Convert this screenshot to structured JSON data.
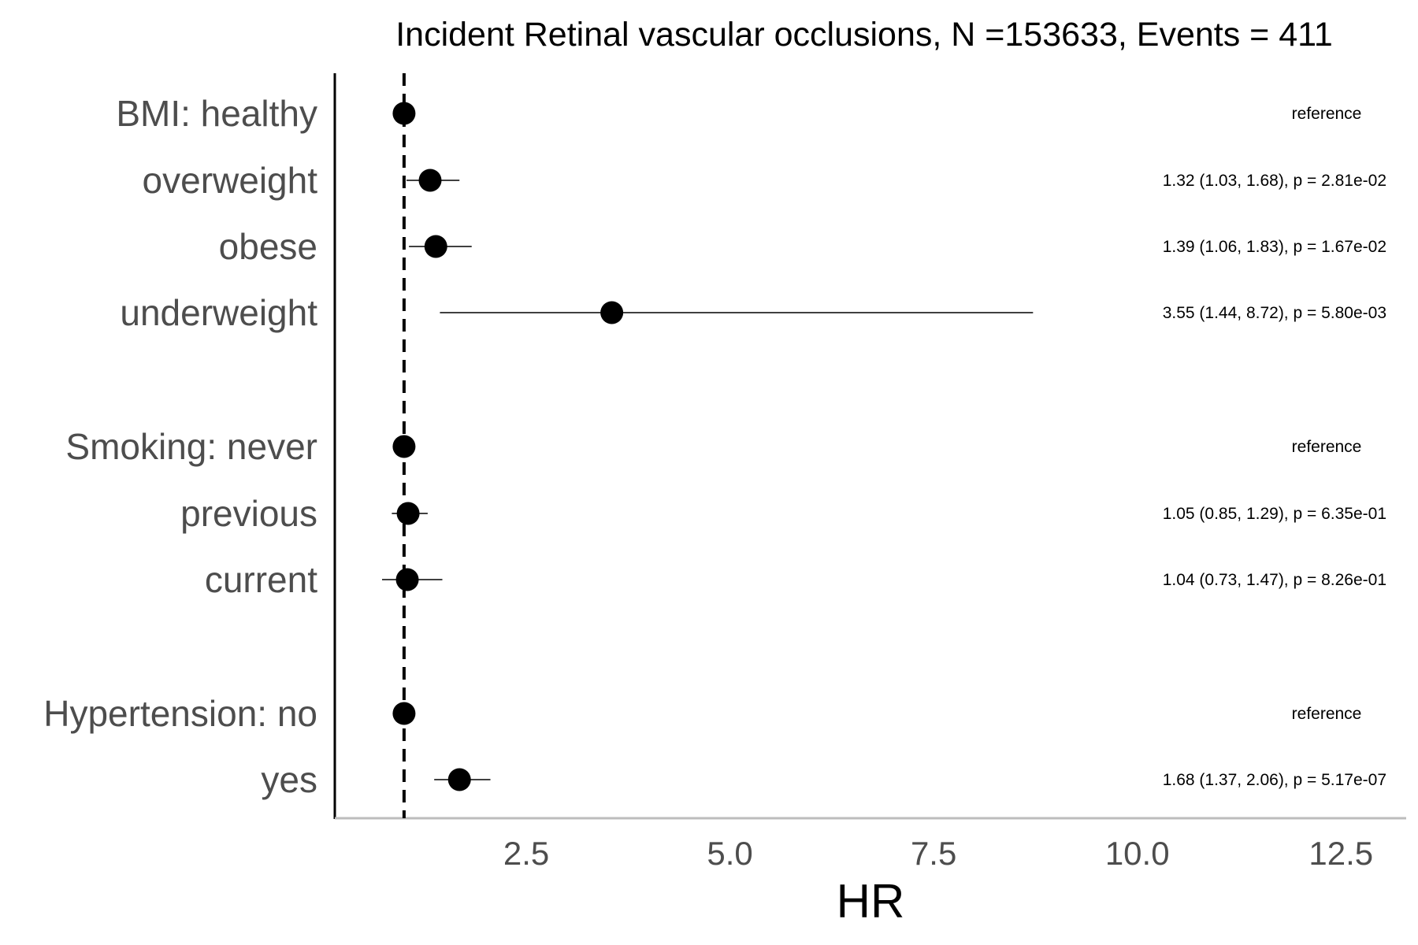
{
  "chart_data": {
    "type": "forest",
    "title": "Incident Retinal vascular occlusions, N =153633, Events = 411",
    "xlabel": "HR",
    "ylabel": "",
    "xlim": [
      0.15,
      13.3
    ],
    "xticks": [
      2.5,
      5.0,
      7.5,
      10.0,
      12.5
    ],
    "xtick_labels": [
      "2.5",
      "5.0",
      "7.5",
      "10.0",
      "12.5"
    ],
    "reference_line": 1.0,
    "grid": false,
    "rows": [
      {
        "label": "BMI: healthy",
        "hr": 1.0,
        "lower": null,
        "upper": null,
        "annotation": "reference"
      },
      {
        "label": "overweight",
        "hr": 1.32,
        "lower": 1.03,
        "upper": 1.68,
        "annotation": "1.32 (1.03, 1.68), p = 2.81e-02"
      },
      {
        "label": "obese",
        "hr": 1.39,
        "lower": 1.06,
        "upper": 1.83,
        "annotation": "1.39 (1.06, 1.83), p = 1.67e-02"
      },
      {
        "label": "underweight",
        "hr": 3.55,
        "lower": 1.44,
        "upper": 8.72,
        "annotation": "3.55 (1.44, 8.72), p = 5.80e-03"
      },
      {
        "label": "Smoking: never",
        "hr": 1.0,
        "lower": null,
        "upper": null,
        "annotation": "reference"
      },
      {
        "label": "previous",
        "hr": 1.05,
        "lower": 0.85,
        "upper": 1.29,
        "annotation": "1.05 (0.85, 1.29), p = 6.35e-01"
      },
      {
        "label": "current",
        "hr": 1.04,
        "lower": 0.73,
        "upper": 1.47,
        "annotation": "1.04 (0.73, 1.47), p = 8.26e-01"
      },
      {
        "label": "Hypertension: no",
        "hr": 1.0,
        "lower": null,
        "upper": null,
        "annotation": "reference"
      },
      {
        "label": "yes",
        "hr": 1.68,
        "lower": 1.37,
        "upper": 2.06,
        "annotation": "1.68 (1.37, 2.06), p = 5.17e-07"
      }
    ],
    "colors": {
      "point": "#000000",
      "ci_line": "#000000",
      "reference_line": "#000000",
      "left_axis": "#000000",
      "bottom_axis": "#bdbdbd",
      "label_text": "#4d4d4d",
      "title_text": "#000000"
    }
  }
}
